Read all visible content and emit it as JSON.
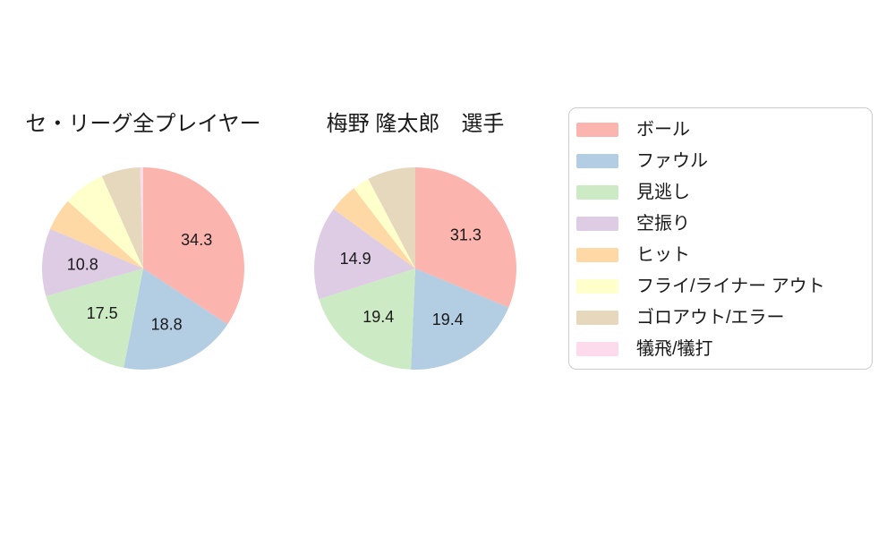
{
  "chart_data": [
    {
      "type": "pie",
      "title": "セ・リーグ全プレイヤー",
      "start_angle": "top",
      "direction": "clockwise",
      "labels": [
        "ボール",
        "ファウル",
        "見逃し",
        "空振り",
        "ヒット",
        "フライ/ライナー アウト",
        "ゴロアウト/エラー",
        "犠飛/犠打"
      ],
      "values": [
        34.3,
        18.8,
        17.5,
        10.8,
        5.2,
        6.7,
        6.2,
        0.5
      ],
      "value_labels": [
        "34.3",
        "18.8",
        "17.5",
        "10.8",
        "",
        "",
        "",
        ""
      ],
      "colors": [
        "#FBB4AE",
        "#B3CDE3",
        "#CCEBC5",
        "#DECBE4",
        "#FED9A6",
        "#FFFFCC",
        "#E5D8BD",
        "#FDDAEC"
      ]
    },
    {
      "type": "pie",
      "title": "梅野 隆太郎　選手",
      "start_angle": "top",
      "direction": "clockwise",
      "labels": [
        "ボール",
        "ファウル",
        "見逃し",
        "空振り",
        "ヒット",
        "フライ/ライナー アウト",
        "ゴロアウト/エラー",
        "犠飛/犠打"
      ],
      "values": [
        31.3,
        19.4,
        19.4,
        14.9,
        4.6,
        2.7,
        7.7,
        0.0
      ],
      "value_labels": [
        "31.3",
        "19.4",
        "19.4",
        "14.9",
        "",
        "",
        "",
        ""
      ],
      "colors": [
        "#FBB4AE",
        "#B3CDE3",
        "#CCEBC5",
        "#DECBE4",
        "#FED9A6",
        "#FFFFCC",
        "#E5D8BD",
        "#FDDAEC"
      ]
    }
  ],
  "legend": {
    "position": "right",
    "border_color": "#cccccc",
    "items": [
      {
        "label": "ボール",
        "color": "#FBB4AE"
      },
      {
        "label": "ファウル",
        "color": "#B3CDE3"
      },
      {
        "label": "見逃し",
        "color": "#CCEBC5"
      },
      {
        "label": "空振り",
        "color": "#DECBE4"
      },
      {
        "label": "ヒット",
        "color": "#FED9A6"
      },
      {
        "label": "フライ/ライナー アウト",
        "color": "#FFFFCC"
      },
      {
        "label": "ゴロアウト/エラー",
        "color": "#E5D8BD"
      },
      {
        "label": "犠飛/犠打",
        "color": "#FDDAEC"
      }
    ]
  },
  "style": {
    "text_color": "#1a1a1a",
    "background": "#ffffff"
  }
}
